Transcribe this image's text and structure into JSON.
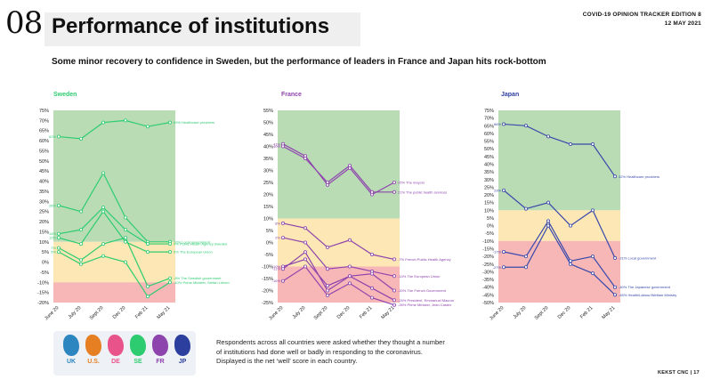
{
  "page": {
    "number": "08",
    "title": "Performance of institutions",
    "header_line1": "COVID-19 OPINION TRACKER EDITION 8",
    "header_line2": "12 MAY 2021",
    "subtitle": "Some minor recovery to confidence in Sweden, but the performance of leaders in France and Japan hits rock-bottom",
    "footnote": "Respondents across all countries were asked whether they thought a number of institutions had done well or badly in responding to the coronavirus. Displayed is the net ‘well’ score in each country.",
    "footer": "KEKST CNC | 17"
  },
  "legend": {
    "items": [
      {
        "label": "UK",
        "color": "#2e86c1"
      },
      {
        "label": "U.S.",
        "color": "#e67e22"
      },
      {
        "label": "DE",
        "color": "#e8548a"
      },
      {
        "label": "SE",
        "color": "#2ecc71"
      },
      {
        "label": "FR",
        "color": "#8e44ad"
      },
      {
        "label": "JP",
        "color": "#2c3e9e"
      }
    ]
  },
  "chart_data": [
    {
      "type": "line",
      "title": "Sweden",
      "title_color": "#2ecc71",
      "line_color": "#2ecc71",
      "ylim": [
        -20,
        75
      ],
      "ystep": 5,
      "bands": [
        {
          "from": 10,
          "to": 75,
          "color": "#b9dcb5"
        },
        {
          "from": -10,
          "to": 10,
          "color": "#fde7b4"
        },
        {
          "from": -20,
          "to": -10,
          "color": "#f7b7b7"
        }
      ],
      "categories": [
        "June 20",
        "July 20",
        "Sept 20",
        "Dec 20",
        "Feb 21",
        "May 21"
      ],
      "series": [
        {
          "name": "69% Healthcare providers",
          "start_label": "62%",
          "values": [
            62,
            61,
            69,
            70,
            67,
            69
          ]
        },
        {
          "name": "10% Local government",
          "start_label": "28%",
          "values": [
            28,
            25,
            44,
            22,
            10,
            10
          ]
        },
        {
          "name": "9% Public Health Agency Sweden",
          "start_label": "14%",
          "values": [
            14,
            16,
            27,
            16,
            9,
            9
          ]
        },
        {
          "name": "5% The European Union",
          "start_label": "12%",
          "values": [
            12,
            9,
            25,
            10,
            5,
            5
          ]
        },
        {
          "name": "-8% The Swedish government",
          "start_label": "7%",
          "values": [
            7,
            1,
            9,
            12,
            -12,
            -8
          ]
        },
        {
          "name": "-10% Prime Minister, Stefan Löfven",
          "start_label": "5%",
          "values": [
            5,
            -1,
            3,
            0,
            -17,
            -10
          ]
        }
      ]
    },
    {
      "type": "line",
      "title": "France",
      "title_color": "#8e44ad",
      "line_color": "#8e44ad",
      "ylim": [
        -25,
        55
      ],
      "ystep": 5,
      "bands": [
        {
          "from": 10,
          "to": 55,
          "color": "#b9dcb5"
        },
        {
          "from": -10,
          "to": 10,
          "color": "#fde7b4"
        },
        {
          "from": -25,
          "to": -10,
          "color": "#f7b7b7"
        }
      ],
      "categories": [
        "June 20",
        "July 20",
        "Sept 20",
        "Dec 20",
        "Feb 21",
        "May 21"
      ],
      "series": [
        {
          "name": "25% The mayors",
          "start_label": "41%",
          "values": [
            41,
            36,
            24,
            31,
            20,
            25
          ]
        },
        {
          "name": "21% The public health services",
          "start_label": "40%",
          "values": [
            40,
            35,
            25,
            32,
            21,
            21
          ]
        },
        {
          "name": "-7% French Public Health Agency",
          "start_label": "8%",
          "values": [
            8,
            6,
            -2,
            1,
            -5,
            -7
          ]
        },
        {
          "name": "-14% The European Union",
          "start_label": "2%",
          "values": [
            2,
            0,
            -11,
            -10,
            -12,
            -14
          ]
        },
        {
          "name": "-20% The French Government",
          "start_label": "-10%",
          "values": [
            -10,
            -7,
            -18,
            -14,
            -13,
            -20
          ]
        },
        {
          "name": "-24% President, Emmanuel Macron",
          "start_label": "-11%",
          "values": [
            -11,
            -4,
            -20,
            -14,
            -19,
            -24
          ]
        },
        {
          "name": "-26% Prime Minister, Jean Castex",
          "start_label": "-16%",
          "values": [
            -16,
            -10,
            -22,
            -17,
            -23,
            -26
          ]
        }
      ]
    },
    {
      "type": "line",
      "title": "Japan",
      "title_color": "#2c3e9e",
      "line_color": "#3949ab",
      "ylim": [
        -50,
        75
      ],
      "ystep": 5,
      "bands": [
        {
          "from": 10,
          "to": 75,
          "color": "#b9dcb5"
        },
        {
          "from": -10,
          "to": 10,
          "color": "#fde7b4"
        },
        {
          "from": -50,
          "to": -10,
          "color": "#f7b7b7"
        }
      ],
      "categories": [
        "June 20",
        "July 20",
        "Sept 20",
        "Dec 20",
        "Feb 21",
        "May 21"
      ],
      "series": [
        {
          "name": "32% Healthcare providers",
          "start_label": "66%",
          "values": [
            66,
            65,
            58,
            53,
            53,
            32
          ]
        },
        {
          "name": "-21% Local government",
          "start_label": "23%",
          "values": [
            23,
            11,
            15,
            0,
            10,
            -21
          ]
        },
        {
          "name": "-40% The Japanese government",
          "start_label": "-17%",
          "values": [
            -17,
            -20,
            3,
            -23,
            -20,
            -40
          ]
        },
        {
          "name": "-45% Health/Labour/Welfare Ministry",
          "start_label": "-27%",
          "values": [
            -27,
            -27,
            0,
            -25,
            -31,
            -45
          ]
        }
      ]
    }
  ]
}
